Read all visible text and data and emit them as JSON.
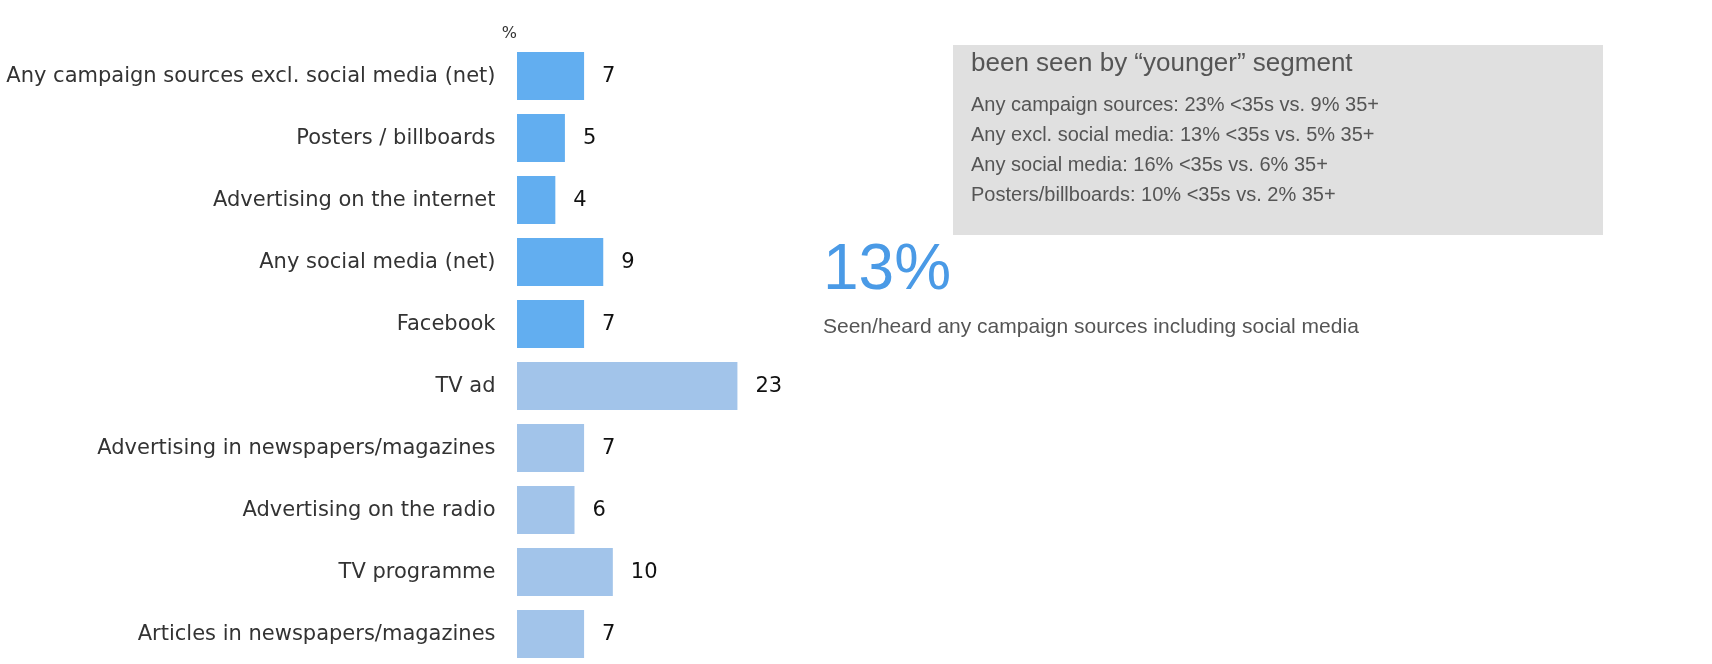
{
  "chart_data": {
    "type": "bar",
    "orientation": "horizontal",
    "xlabel": "%",
    "categories": [
      "Any campaign sources excl. social media (net)",
      "Posters / billboards",
      "Advertising on the internet",
      "Any social media (net)",
      "Facebook",
      "TV ad",
      "Advertising in newspapers/magazines",
      "Advertising on the radio",
      "TV programme",
      "Articles in newspapers/magazines"
    ],
    "values": [
      7,
      5,
      4,
      9,
      7,
      23,
      7,
      6,
      10,
      7
    ],
    "colors": [
      "#62aef0",
      "#62aef0",
      "#62aef0",
      "#62aef0",
      "#62aef0",
      "#a2c4ea",
      "#a2c4ea",
      "#a2c4ea",
      "#a2c4ea",
      "#a2c4ea"
    ],
    "data_labels": true,
    "annotations": [
      "been seen by “younger” segment",
      "Any campaign sources: 23% <35s vs. 9% 35+",
      "Any excl. social media: 13% <35s vs. 5% 35+",
      "Any social media: 16% <35s vs. 6% 35+",
      "Posters/billboards: 10% <35s vs. 2% 35+",
      "13%",
      "Seen/heard any campaign sources including social media"
    ]
  }
}
